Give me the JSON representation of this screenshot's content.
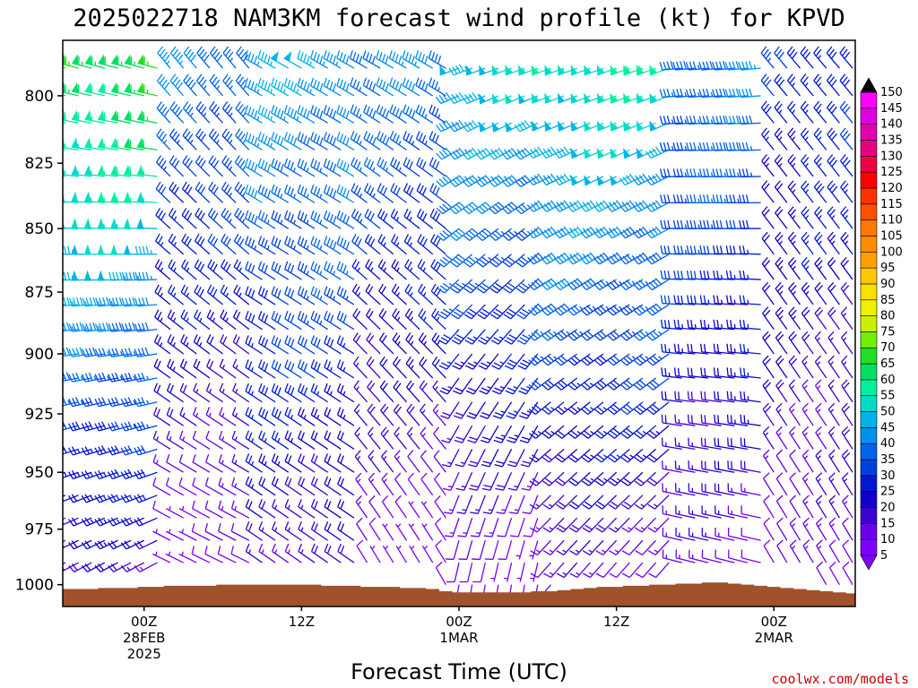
{
  "title": "2025022718 NAM3KM forecast wind profile (kt) for KPVD",
  "credit": "coolwx.com/models",
  "chart_data": {
    "type": "wind-barb time-height section",
    "title": "2025022718 NAM3KM forecast wind profile (kt) for KPVD",
    "xlabel": "Forecast Time (UTC)",
    "ylabel": "",
    "units": "kt",
    "x_hours_from_init": [
      0,
      1,
      2,
      3,
      4,
      5,
      6,
      7,
      8,
      9,
      10,
      11,
      12,
      13,
      14,
      15,
      16,
      17,
      18,
      19,
      20,
      21,
      22,
      23,
      24,
      25,
      26,
      27,
      28,
      29,
      30,
      31,
      32,
      33,
      34,
      35,
      36,
      37,
      38,
      39,
      40,
      41,
      42,
      43,
      44,
      45,
      46,
      47,
      48,
      49,
      50,
      51,
      52,
      53,
      54,
      55,
      56,
      57,
      58,
      59,
      60
    ],
    "xlim": [
      -0.2,
      60.2
    ],
    "ylim": [
      1010,
      780
    ],
    "y_scale": "log-pressure (hPa)",
    "y_levels": [
      790,
      800,
      810,
      820,
      830,
      840,
      850,
      860,
      870,
      880,
      890,
      900,
      910,
      920,
      930,
      940,
      950,
      960,
      970,
      980,
      990,
      1000
    ],
    "y_ticks": [
      800,
      825,
      850,
      875,
      900,
      925,
      950,
      975,
      1000
    ],
    "x_ticks": [
      {
        "hour": 6,
        "lines": [
          "00Z",
          "28FEB",
          "2025"
        ]
      },
      {
        "hour": 18,
        "lines": [
          "12Z"
        ]
      },
      {
        "hour": 30,
        "lines": [
          "00Z",
          "1MAR"
        ]
      },
      {
        "hour": 42,
        "lines": [
          "12Z"
        ]
      },
      {
        "hour": 54,
        "lines": [
          "00Z",
          "2MAR"
        ]
      }
    ],
    "wind_regimes": [
      {
        "hours": [
          0,
          7
        ],
        "direction_deg_low": 240,
        "direction_deg_high": 285,
        "speed_kt_low": 15,
        "speed_kt_high": 65
      },
      {
        "hours": [
          8,
          14
        ],
        "direction_deg_low": 295,
        "direction_deg_high": 320,
        "speed_kt_low": 5,
        "speed_kt_high": 40
      },
      {
        "hours": [
          15,
          22
        ],
        "direction_deg_low": 305,
        "direction_deg_high": 300,
        "speed_kt_low": 15,
        "speed_kt_high": 45
      },
      {
        "hours": [
          23,
          29
        ],
        "direction_deg_low": 330,
        "direction_deg_high": 300,
        "speed_kt_low": 5,
        "speed_kt_high": 40
      },
      {
        "hours": [
          30,
          36
        ],
        "direction_deg_low": 190,
        "direction_deg_high": 250,
        "speed_kt_low": 5,
        "speed_kt_high": 50
      },
      {
        "hours": [
          37,
          46
        ],
        "direction_deg_low": 220,
        "direction_deg_high": 250,
        "speed_kt_low": 10,
        "speed_kt_high": 55
      },
      {
        "hours": [
          47,
          53
        ],
        "direction_deg_low": 285,
        "direction_deg_high": 265,
        "speed_kt_low": 10,
        "speed_kt_high": 40
      },
      {
        "hours": [
          54,
          60
        ],
        "direction_deg_low": 330,
        "direction_deg_high": 320,
        "speed_kt_low": 10,
        "speed_kt_high": 30
      }
    ],
    "surface_pressure_hpa": [
      1002,
      1002,
      1002,
      1001.5,
      1001.5,
      1001.5,
      1001,
      1001,
      1000.5,
      1000.5,
      1000.5,
      1000.5,
      1000,
      1000,
      1000,
      1000,
      1000,
      1000,
      1000,
      1000,
      1000.5,
      1000.5,
      1000.5,
      1001,
      1001,
      1001,
      1001.5,
      1001.5,
      1002,
      1003,
      1003.5,
      1003.5,
      1003.5,
      1003.5,
      1003.5,
      1003.5,
      1003,
      1003,
      1002.5,
      1002,
      1001.5,
      1001,
      1001,
      1000.5,
      1000.5,
      1000,
      1000,
      999.5,
      999.5,
      999,
      999,
      999.5,
      1000,
      1000.5,
      1001,
      1001.5,
      1002,
      1002.5,
      1003,
      1003.5,
      1004
    ],
    "colorbar": {
      "labels": [
        5,
        10,
        15,
        20,
        25,
        30,
        35,
        40,
        45,
        50,
        55,
        60,
        65,
        70,
        75,
        80,
        85,
        90,
        95,
        100,
        105,
        110,
        115,
        120,
        125,
        130,
        135,
        140,
        145,
        150
      ],
      "colors": [
        "#8000ff",
        "#6a00ea",
        "#3c00d2",
        "#1000c8",
        "#0018d6",
        "#0040e0",
        "#0064ea",
        "#0090f0",
        "#00b4e6",
        "#00dcc8",
        "#00f0a0",
        "#00e060",
        "#20e020",
        "#70f000",
        "#c8f000",
        "#f0f000",
        "#f8e000",
        "#ffc800",
        "#ffa000",
        "#ff8c00",
        "#ff7800",
        "#ff5000",
        "#ff3000",
        "#ff0000",
        "#f00040",
        "#e80080",
        "#e000b0",
        "#e000e0",
        "#ff00ff"
      ],
      "low_arrow_color": "#8000ff",
      "high_arrow_color": "#000000"
    },
    "terrain_color": "#a0522d"
  }
}
